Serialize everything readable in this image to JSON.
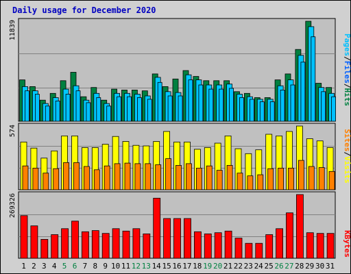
{
  "title": "Daily usage for December 2020",
  "colors": {
    "hits": "#008040",
    "files": "#00c8ff",
    "pages": "#00c0ff",
    "visits": "#ffff00",
    "sites": "#ff8000",
    "kbytes": "#ff0000",
    "weekday_label": "#000000",
    "weekend_label": "#008040",
    "panel_bg": "#c0c0c0",
    "frame_bg": "#d0d0d0"
  },
  "legend": {
    "top": [
      "Pages",
      "/",
      "Files",
      "/",
      "Hits"
    ],
    "middle": [
      "Sites",
      "/",
      "Visits"
    ],
    "bottom": [
      "KBytes"
    ]
  },
  "chart_data": [
    {
      "type": "bar",
      "panel": "hits-files-pages",
      "categories": [
        "1",
        "2",
        "3",
        "4",
        "5",
        "6",
        "7",
        "8",
        "9",
        "10",
        "11",
        "12",
        "13",
        "14",
        "15",
        "16",
        "17",
        "18",
        "19",
        "20",
        "21",
        "22",
        "23",
        "24",
        "25",
        "26",
        "27",
        "28",
        "29",
        "30",
        "31"
      ],
      "weekend_days": [
        "5",
        "6",
        "12",
        "13",
        "19",
        "20",
        "26",
        "27"
      ],
      "ylim": [
        0,
        11839
      ],
      "ytick_label": "11839",
      "series": [
        {
          "name": "Hits",
          "values": [
            4900,
            4100,
            2500,
            3300,
            4800,
            5800,
            2900,
            4000,
            2500,
            3800,
            3700,
            3700,
            3600,
            5600,
            4100,
            5000,
            6000,
            5300,
            4800,
            4800,
            4800,
            3500,
            3300,
            2800,
            2800,
            4900,
            5600,
            8500,
            11839,
            4500,
            4000
          ]
        },
        {
          "name": "Files",
          "values": [
            4100,
            3600,
            2100,
            2800,
            3800,
            4200,
            2500,
            3300,
            2100,
            3300,
            3300,
            3200,
            3000,
            5200,
            3500,
            3400,
            5500,
            4900,
            4300,
            4300,
            4400,
            3200,
            2900,
            2600,
            2600,
            4200,
            4900,
            7800,
            11200,
            4000,
            3300
          ]
        },
        {
          "name": "Pages",
          "values": [
            3600,
            3200,
            1800,
            2400,
            3200,
            3600,
            2200,
            2800,
            1800,
            2900,
            2900,
            2800,
            2600,
            4600,
            3000,
            3000,
            4900,
            4300,
            3800,
            3800,
            3900,
            2800,
            2600,
            2300,
            2300,
            3700,
            4300,
            7000,
            10000,
            3500,
            2900
          ]
        }
      ]
    },
    {
      "type": "bar",
      "panel": "sites-visits",
      "categories": [
        "1",
        "2",
        "3",
        "4",
        "5",
        "6",
        "7",
        "8",
        "9",
        "10",
        "11",
        "12",
        "13",
        "14",
        "15",
        "16",
        "17",
        "18",
        "19",
        "20",
        "21",
        "22",
        "23",
        "24",
        "25",
        "26",
        "27",
        "28",
        "29",
        "30",
        "31"
      ],
      "ylim": [
        0,
        574
      ],
      "ytick_label": "574",
      "series": [
        {
          "name": "Visits",
          "values": [
            430,
            375,
            285,
            350,
            485,
            485,
            380,
            380,
            410,
            480,
            435,
            400,
            395,
            435,
            525,
            430,
            430,
            365,
            380,
            420,
            485,
            370,
            325,
            360,
            500,
            485,
            525,
            574,
            460,
            440,
            380
          ]
        },
        {
          "name": "Sites",
          "values": [
            215,
            195,
            150,
            190,
            245,
            245,
            210,
            180,
            215,
            235,
            240,
            235,
            235,
            225,
            280,
            220,
            235,
            195,
            215,
            175,
            220,
            150,
            125,
            135,
            190,
            195,
            195,
            265,
            210,
            200,
            165
          ]
        }
      ]
    },
    {
      "type": "bar",
      "panel": "kbytes",
      "categories": [
        "1",
        "2",
        "3",
        "4",
        "5",
        "6",
        "7",
        "8",
        "9",
        "10",
        "11",
        "12",
        "13",
        "14",
        "15",
        "16",
        "17",
        "18",
        "19",
        "20",
        "21",
        "22",
        "23",
        "24",
        "25",
        "26",
        "27",
        "28",
        "29",
        "30",
        "31"
      ],
      "ylim": [
        0,
        269326
      ],
      "ytick_label": "269326",
      "series": [
        {
          "name": "KBytes",
          "values": [
            180000,
            137000,
            80000,
            100000,
            125000,
            157000,
            112000,
            117000,
            105000,
            125000,
            115000,
            125000,
            103000,
            254000,
            168000,
            168000,
            168000,
            112000,
            103000,
            108000,
            115000,
            85000,
            63000,
            63000,
            100000,
            125000,
            192000,
            269326,
            108000,
            105000,
            105000
          ]
        }
      ]
    }
  ]
}
